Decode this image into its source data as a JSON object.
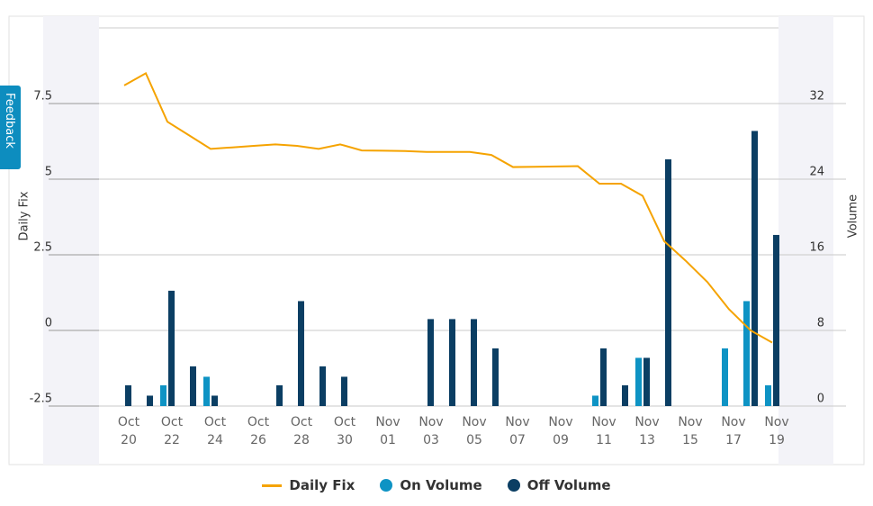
{
  "feedback": "Feedback",
  "chart_data": {
    "type": "combo",
    "y_label": "Daily Fix",
    "y2_label": "Volume",
    "categories": [
      "Oct 20",
      null,
      "Oct 22",
      null,
      "Oct 24",
      null,
      "Oct 26",
      null,
      "Oct 28",
      null,
      "Oct 30",
      null,
      "Nov 01",
      null,
      "Nov 03",
      null,
      "Nov 05",
      null,
      "Nov 07",
      null,
      "Nov 09",
      null,
      "Nov 11",
      null,
      "Nov 13",
      null,
      "Nov 15",
      null,
      "Nov 17",
      null,
      "Nov 19"
    ],
    "series": [
      {
        "name": "Daily Fix",
        "type": "line",
        "color": "#f5a300",
        "values": [
          8.1,
          8.5,
          6.9,
          6.45,
          6.0,
          6.05,
          6.1,
          6.15,
          6.1,
          6.0,
          6.15,
          5.95,
          5.94,
          5.93,
          5.9,
          5.9,
          5.9,
          5.8,
          5.4,
          5.41,
          5.42,
          5.43,
          4.85,
          4.85,
          4.45,
          2.95,
          2.3,
          1.6,
          0.7,
          0.0,
          -0.4
        ]
      },
      {
        "name": "On Volume",
        "type": "bar",
        "axis": "y2",
        "color": "#0e93c4",
        "values": [
          0,
          0,
          2.2,
          0,
          3.1,
          0,
          0,
          0,
          0,
          0,
          0,
          0,
          0,
          0,
          0,
          0,
          0,
          0,
          0,
          0,
          0,
          0,
          1.1,
          0,
          5.1,
          0,
          0,
          0,
          6.1,
          11.1,
          2.2
        ]
      },
      {
        "name": "Off Volume",
        "type": "bar",
        "axis": "y2",
        "color": "#0b3e63",
        "values": [
          2.2,
          1.1,
          12.2,
          4.2,
          1.1,
          0,
          0,
          2.2,
          11.1,
          4.2,
          3.1,
          0,
          0,
          0,
          9.2,
          9.2,
          9.2,
          6.1,
          0,
          0,
          0,
          0,
          6.1,
          2.2,
          5.1,
          26.1,
          0,
          0,
          0,
          29.1,
          18.1
        ]
      }
    ],
    "ylim": [
      -2.5,
      10
    ],
    "yticks": [
      -2.5,
      0,
      2.5,
      5,
      7.5
    ],
    "y2lim": [
      0,
      40
    ],
    "y2ticks": [
      0,
      8,
      16,
      24,
      32
    ],
    "grid": true,
    "legend": "bottom"
  }
}
